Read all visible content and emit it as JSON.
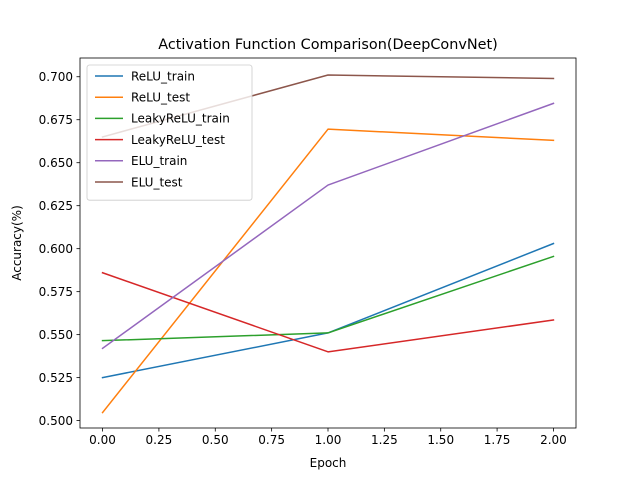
{
  "chart_data": {
    "type": "line",
    "title": "Activation Function Comparison(DeepConvNet)",
    "xlabel": "Epoch",
    "ylabel": "Accuracy(%)",
    "x": [
      0,
      1,
      2
    ],
    "xlim": [
      -0.1,
      2.1
    ],
    "ylim": [
      0.4957,
      0.7109
    ],
    "xticks": [
      "0.00",
      "0.25",
      "0.50",
      "0.75",
      "1.00",
      "1.25",
      "1.50",
      "1.75",
      "2.00"
    ],
    "yticks": [
      "0.500",
      "0.525",
      "0.550",
      "0.575",
      "0.600",
      "0.625",
      "0.650",
      "0.675",
      "0.700"
    ],
    "grid": false,
    "legend_position": "upper-left",
    "series": [
      {
        "name": "ReLU_train",
        "color": "#1f77b4",
        "values": [
          0.525,
          0.551,
          0.603
        ]
      },
      {
        "name": "ReLU_test",
        "color": "#ff7f0e",
        "values": [
          0.5047,
          0.6695,
          0.663
        ]
      },
      {
        "name": "LeakyReLU_train",
        "color": "#2ca02c",
        "values": [
          0.5465,
          0.551,
          0.5955
        ]
      },
      {
        "name": "LeakyReLU_test",
        "color": "#d62728",
        "values": [
          0.586,
          0.54,
          0.5585
        ]
      },
      {
        "name": "ELU_train",
        "color": "#9467bd",
        "values": [
          0.542,
          0.637,
          0.6845
        ]
      },
      {
        "name": "ELU_test",
        "color": "#8c564b",
        "values": [
          0.665,
          0.701,
          0.699
        ]
      }
    ]
  }
}
